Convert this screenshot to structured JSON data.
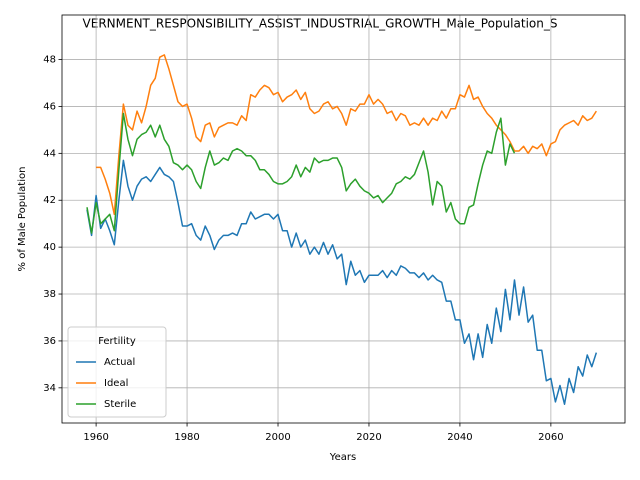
{
  "chart_data": {
    "type": "line",
    "title": "VERNMENT_RESPONSIBILITY_ASSIST_INDUSTRIAL_GROWTH_Male_Population_S",
    "x_label": "Years",
    "y_label": "% of Male Population",
    "x": [
      1958,
      1959,
      1960,
      1961,
      1962,
      1963,
      1964,
      1965,
      1966,
      1967,
      1968,
      1969,
      1970,
      1971,
      1972,
      1973,
      1974,
      1975,
      1976,
      1977,
      1978,
      1979,
      1980,
      1981,
      1982,
      1983,
      1984,
      1985,
      1986,
      1987,
      1988,
      1989,
      1990,
      1991,
      1992,
      1993,
      1994,
      1995,
      1996,
      1997,
      1998,
      1999,
      2000,
      2001,
      2002,
      2003,
      2004,
      2005,
      2006,
      2007,
      2008,
      2009,
      2010,
      2011,
      2012,
      2013,
      2014,
      2015,
      2016,
      2017,
      2018,
      2019,
      2020,
      2021,
      2022,
      2023,
      2024,
      2025,
      2026,
      2027,
      2028,
      2029,
      2030,
      2031,
      2032,
      2033,
      2034,
      2035,
      2036,
      2037,
      2038,
      2039,
      2040,
      2041,
      2042,
      2043,
      2044,
      2045,
      2046,
      2047,
      2048,
      2049,
      2050,
      2051,
      2052,
      2053,
      2054,
      2055,
      2056,
      2057,
      2058,
      2059,
      2060,
      2061,
      2062,
      2063,
      2064,
      2065,
      2066,
      2067,
      2068,
      2069,
      2070
    ],
    "series": [
      {
        "name": "Actual",
        "color": "#1f77b4",
        "values": [
          41.6,
          40.5,
          42.2,
          40.8,
          41.2,
          40.7,
          40.1,
          42.0,
          43.7,
          42.6,
          42.0,
          42.6,
          42.9,
          43.0,
          42.8,
          43.1,
          43.4,
          43.1,
          43.0,
          42.8,
          41.9,
          40.9,
          40.9,
          41.0,
          40.5,
          40.3,
          40.9,
          40.5,
          39.9,
          40.3,
          40.5,
          40.5,
          40.6,
          40.5,
          41.0,
          41.0,
          41.5,
          41.2,
          41.3,
          41.4,
          41.4,
          41.2,
          41.4,
          40.7,
          40.7,
          40.0,
          40.6,
          40.0,
          40.3,
          39.7,
          40.0,
          39.7,
          40.2,
          39.7,
          40.1,
          39.5,
          39.7,
          38.4,
          39.4,
          38.8,
          39.0,
          38.5,
          38.8,
          38.8,
          38.8,
          39.0,
          38.7,
          39.0,
          38.8,
          39.2,
          39.1,
          38.9,
          38.9,
          38.7,
          38.9,
          38.6,
          38.8,
          38.6,
          38.5,
          37.7,
          37.7,
          36.9,
          36.9,
          35.9,
          36.3,
          35.2,
          36.3,
          35.3,
          36.7,
          35.9,
          37.4,
          36.4,
          38.2,
          36.9,
          38.6,
          37.1,
          38.3,
          36.8,
          37.1,
          35.6,
          35.6,
          34.3,
          34.4,
          33.4,
          34.1,
          33.3,
          34.4,
          33.8,
          34.9,
          34.5,
          35.4,
          34.9,
          35.5
        ]
      },
      {
        "name": "Ideal",
        "color": "#ff7f0e",
        "values": [
          null,
          null,
          43.4,
          43.4,
          42.9,
          42.3,
          41.4,
          43.9,
          46.1,
          45.2,
          45.0,
          45.8,
          45.3,
          46.0,
          46.9,
          47.2,
          48.1,
          48.2,
          47.6,
          46.9,
          46.2,
          46.0,
          46.1,
          45.5,
          44.7,
          44.5,
          45.2,
          45.3,
          44.7,
          45.1,
          45.2,
          45.3,
          45.3,
          45.2,
          45.6,
          45.4,
          46.5,
          46.4,
          46.7,
          46.9,
          46.8,
          46.5,
          46.6,
          46.2,
          46.4,
          46.5,
          46.7,
          46.3,
          46.6,
          45.9,
          45.7,
          45.8,
          46.1,
          46.2,
          45.9,
          46.0,
          45.7,
          45.2,
          45.9,
          45.8,
          46.1,
          46.1,
          46.5,
          46.1,
          46.3,
          46.1,
          45.7,
          45.8,
          45.4,
          45.7,
          45.6,
          45.2,
          45.3,
          45.2,
          45.5,
          45.2,
          45.5,
          45.4,
          45.8,
          45.5,
          45.9,
          45.9,
          46.5,
          46.4,
          46.9,
          46.3,
          46.4,
          46.0,
          45.7,
          45.5,
          45.2,
          45.0,
          44.8,
          44.5,
          44.1,
          44.1,
          44.3,
          44.0,
          44.3,
          44.2,
          44.4,
          43.9,
          44.4,
          44.5,
          45.0,
          45.2,
          45.3,
          45.4,
          45.2,
          45.6,
          45.4,
          45.5,
          45.8
        ]
      },
      {
        "name": "Sterile",
        "color": "#2ca02c",
        "values": [
          41.7,
          40.6,
          41.9,
          41.0,
          41.2,
          41.4,
          40.7,
          43.3,
          45.7,
          44.6,
          43.9,
          44.6,
          44.8,
          44.9,
          45.2,
          44.7,
          45.2,
          44.6,
          44.3,
          43.6,
          43.5,
          43.3,
          43.5,
          43.3,
          42.8,
          42.5,
          43.4,
          44.1,
          43.5,
          43.6,
          43.8,
          43.7,
          44.1,
          44.2,
          44.1,
          43.9,
          43.9,
          43.7,
          43.3,
          43.3,
          43.1,
          42.8,
          42.7,
          42.7,
          42.8,
          43.0,
          43.5,
          43.0,
          43.4,
          43.2,
          43.8,
          43.6,
          43.7,
          43.7,
          43.8,
          43.8,
          43.4,
          42.4,
          42.7,
          42.9,
          42.6,
          42.4,
          42.3,
          42.1,
          42.2,
          41.9,
          42.1,
          42.3,
          42.7,
          42.8,
          43.0,
          42.9,
          43.1,
          43.6,
          44.1,
          43.2,
          41.8,
          42.8,
          42.6,
          41.5,
          41.9,
          41.2,
          41.0,
          41.0,
          41.7,
          41.8,
          42.7,
          43.5,
          44.1,
          44.0,
          44.9,
          45.5,
          43.5,
          44.4,
          44.0,
          null,
          null,
          null,
          null,
          null,
          null,
          null,
          null,
          null,
          null,
          null,
          null,
          null,
          null,
          null,
          null,
          null,
          null
        ]
      }
    ],
    "xlim": [
      1952.5,
      2076.3
    ],
    "ylim": [
      32.5,
      49.9
    ],
    "xticks": [
      1960,
      1980,
      2000,
      2020,
      2040,
      2060
    ],
    "yticks": [
      34,
      36,
      38,
      40,
      42,
      44,
      46,
      48
    ],
    "grid": true,
    "legend": {
      "title": "Fertility",
      "position": "lower left"
    }
  }
}
